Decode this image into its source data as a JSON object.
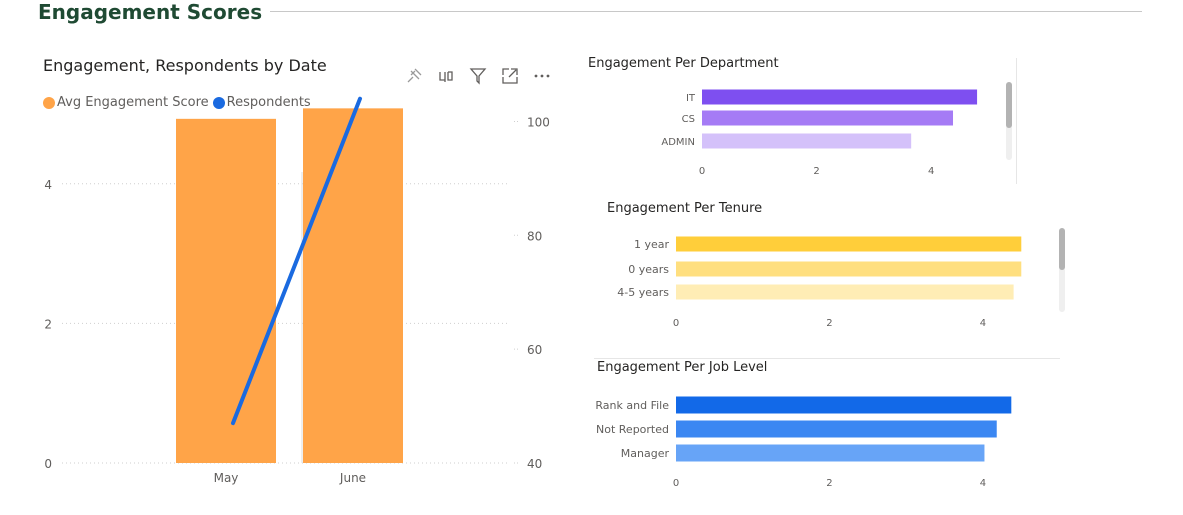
{
  "page": {
    "title": "Engagement Scores"
  },
  "toolbar": {
    "icons": [
      "pin-icon",
      "copy-visual-icon",
      "filter-icon",
      "focus-mode-icon",
      "more-options-icon"
    ]
  },
  "colors": {
    "bar_orange": "#FFA448",
    "line_blue": "#1A6AE0",
    "dept": [
      "#7E4FF0",
      "#A57BF5",
      "#D4C1FA"
    ],
    "tenure": [
      "#FFCE3A",
      "#FFDF7F",
      "#FFEDB5"
    ],
    "job": [
      "#1269E8",
      "#3B87F2",
      "#67A4F7"
    ]
  },
  "chart_data": [
    {
      "type": "bar+line",
      "title": "Engagement, Respondents by Date",
      "legend": [
        "Avg Engagement Score",
        "Respondents"
      ],
      "categories": [
        "May",
        "June"
      ],
      "series": [
        {
          "name": "Avg Engagement Score",
          "axis": "left",
          "values": [
            4.93,
            5.08
          ]
        },
        {
          "name": "Respondents",
          "axis": "right",
          "values": [
            47,
            104
          ]
        }
      ],
      "ylim_left": [
        0,
        5.3
      ],
      "ylim_right": [
        40,
        105
      ],
      "left_ticks": [
        "0",
        "2",
        "4"
      ],
      "right_ticks": [
        "40",
        "60",
        "80",
        "100"
      ],
      "left_tick_values": [
        0,
        2,
        4
      ],
      "right_tick_values": [
        40,
        60,
        80,
        100
      ]
    },
    {
      "type": "bar",
      "orientation": "horizontal",
      "title": "Engagement Per Department",
      "categories": [
        "IT",
        "CS",
        "ADMIN"
      ],
      "values": [
        4.8,
        4.38,
        3.65
      ],
      "xlim": [
        0,
        5.2
      ],
      "x_ticks": [
        "0",
        "2",
        "4"
      ],
      "x_tick_values": [
        0,
        2,
        4
      ]
    },
    {
      "type": "bar",
      "orientation": "horizontal",
      "title": "Engagement Per Tenure",
      "categories": [
        "1 year",
        "0 years",
        "4-5 years"
      ],
      "values": [
        4.5,
        4.5,
        4.4
      ],
      "xlim": [
        0,
        5.2
      ],
      "x_ticks": [
        "0",
        "2",
        "4"
      ],
      "x_tick_values": [
        0,
        2,
        4
      ]
    },
    {
      "type": "bar",
      "orientation": "horizontal",
      "title": "Engagement Per Job Level",
      "categories": [
        "Rank and File",
        "Not Reported",
        "Manager"
      ],
      "values": [
        4.37,
        4.18,
        4.02
      ],
      "xlim": [
        0,
        5.2
      ],
      "x_ticks": [
        "0",
        "2",
        "4"
      ],
      "x_tick_values": [
        0,
        2,
        4
      ]
    }
  ]
}
